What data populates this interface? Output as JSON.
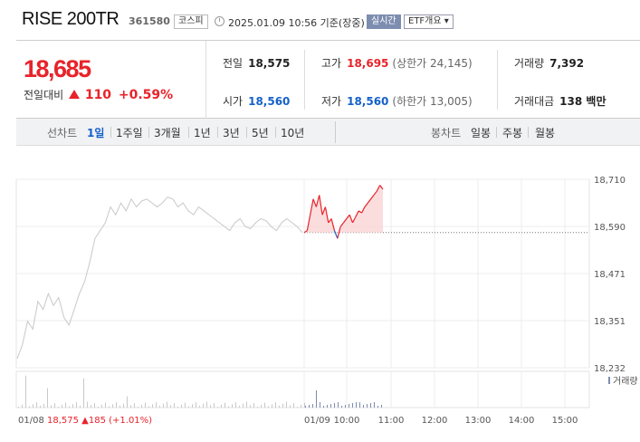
{
  "header": {
    "name": "RISE 200TR",
    "code": "361580",
    "market": "코스피",
    "datetime": "2025.01.09 10:56 기준(장중)",
    "realtime": "실시간",
    "etf": "ETF개요 ▾"
  },
  "summary": {
    "price": "18,685",
    "change_label": "전일대비",
    "change_value": "110",
    "change_pct": "+0.59%",
    "prev_close_label": "전일",
    "prev_close": "18,575",
    "open_label": "시가",
    "open": "18,560",
    "high_label": "고가",
    "high": "18,695",
    "upper_limit": "(상한가 24,145)",
    "low_label": "저가",
    "low": "18,560",
    "lower_limit": "(하한가 13,005)",
    "volume_label": "거래량",
    "volume": "7,392",
    "amount_label": "거래대금",
    "amount": "138 백만"
  },
  "tabs": {
    "line_header": "선차트",
    "line": [
      "1일",
      "1주일",
      "3개월",
      "1년",
      "3년",
      "5년",
      "10년"
    ],
    "active": "1일",
    "candle_header": "봉차트",
    "candle": [
      "일봉",
      "주봉",
      "월봉"
    ]
  },
  "chart_data": {
    "type": "line",
    "y_ticks": [
      "18,710",
      "18,590",
      "18,471",
      "18,351",
      "18,232"
    ],
    "ylim": [
      18232,
      18710
    ],
    "x_ticks": [
      "01/08",
      "01/09",
      "10:00",
      "11:00",
      "12:00",
      "13:00",
      "14:00",
      "15:00"
    ],
    "prev_close_value": 18575,
    "prev_day_note_date": "01/08",
    "prev_day_note_price": "18,575",
    "prev_day_note_change": "▲185 (+1.01%)",
    "volume_legend": "거래량",
    "colors": {
      "up": "#e8232a",
      "down": "#1561c8",
      "prev": "#c8c8c8"
    },
    "series": [
      {
        "day": "01/08",
        "values": [
          18255,
          18290,
          18350,
          18330,
          18400,
          18380,
          18420,
          18390,
          18410,
          18360,
          18340,
          18380,
          18420,
          18450,
          18500,
          18560,
          18580,
          18600,
          18640,
          18620,
          18650,
          18630,
          18660,
          18640,
          18655,
          18660,
          18650,
          18640,
          18650,
          18665,
          18660,
          18640,
          18650,
          18630,
          18620,
          18640,
          18630,
          18620,
          18610,
          18600,
          18590,
          18580,
          18600,
          18610,
          18590,
          18585,
          18600,
          18610,
          18605,
          18590,
          18580,
          18600,
          18610,
          18600,
          18590,
          18575
        ]
      },
      {
        "day": "01/09",
        "values": [
          18575,
          18580,
          18620,
          18660,
          18640,
          18670,
          18620,
          18640,
          18600,
          18610,
          18580,
          18560,
          18590,
          18600,
          18610,
          18620,
          18600,
          18615,
          18630,
          18625,
          18640,
          18650,
          18660,
          18670,
          18680,
          18695,
          18685
        ]
      }
    ]
  }
}
